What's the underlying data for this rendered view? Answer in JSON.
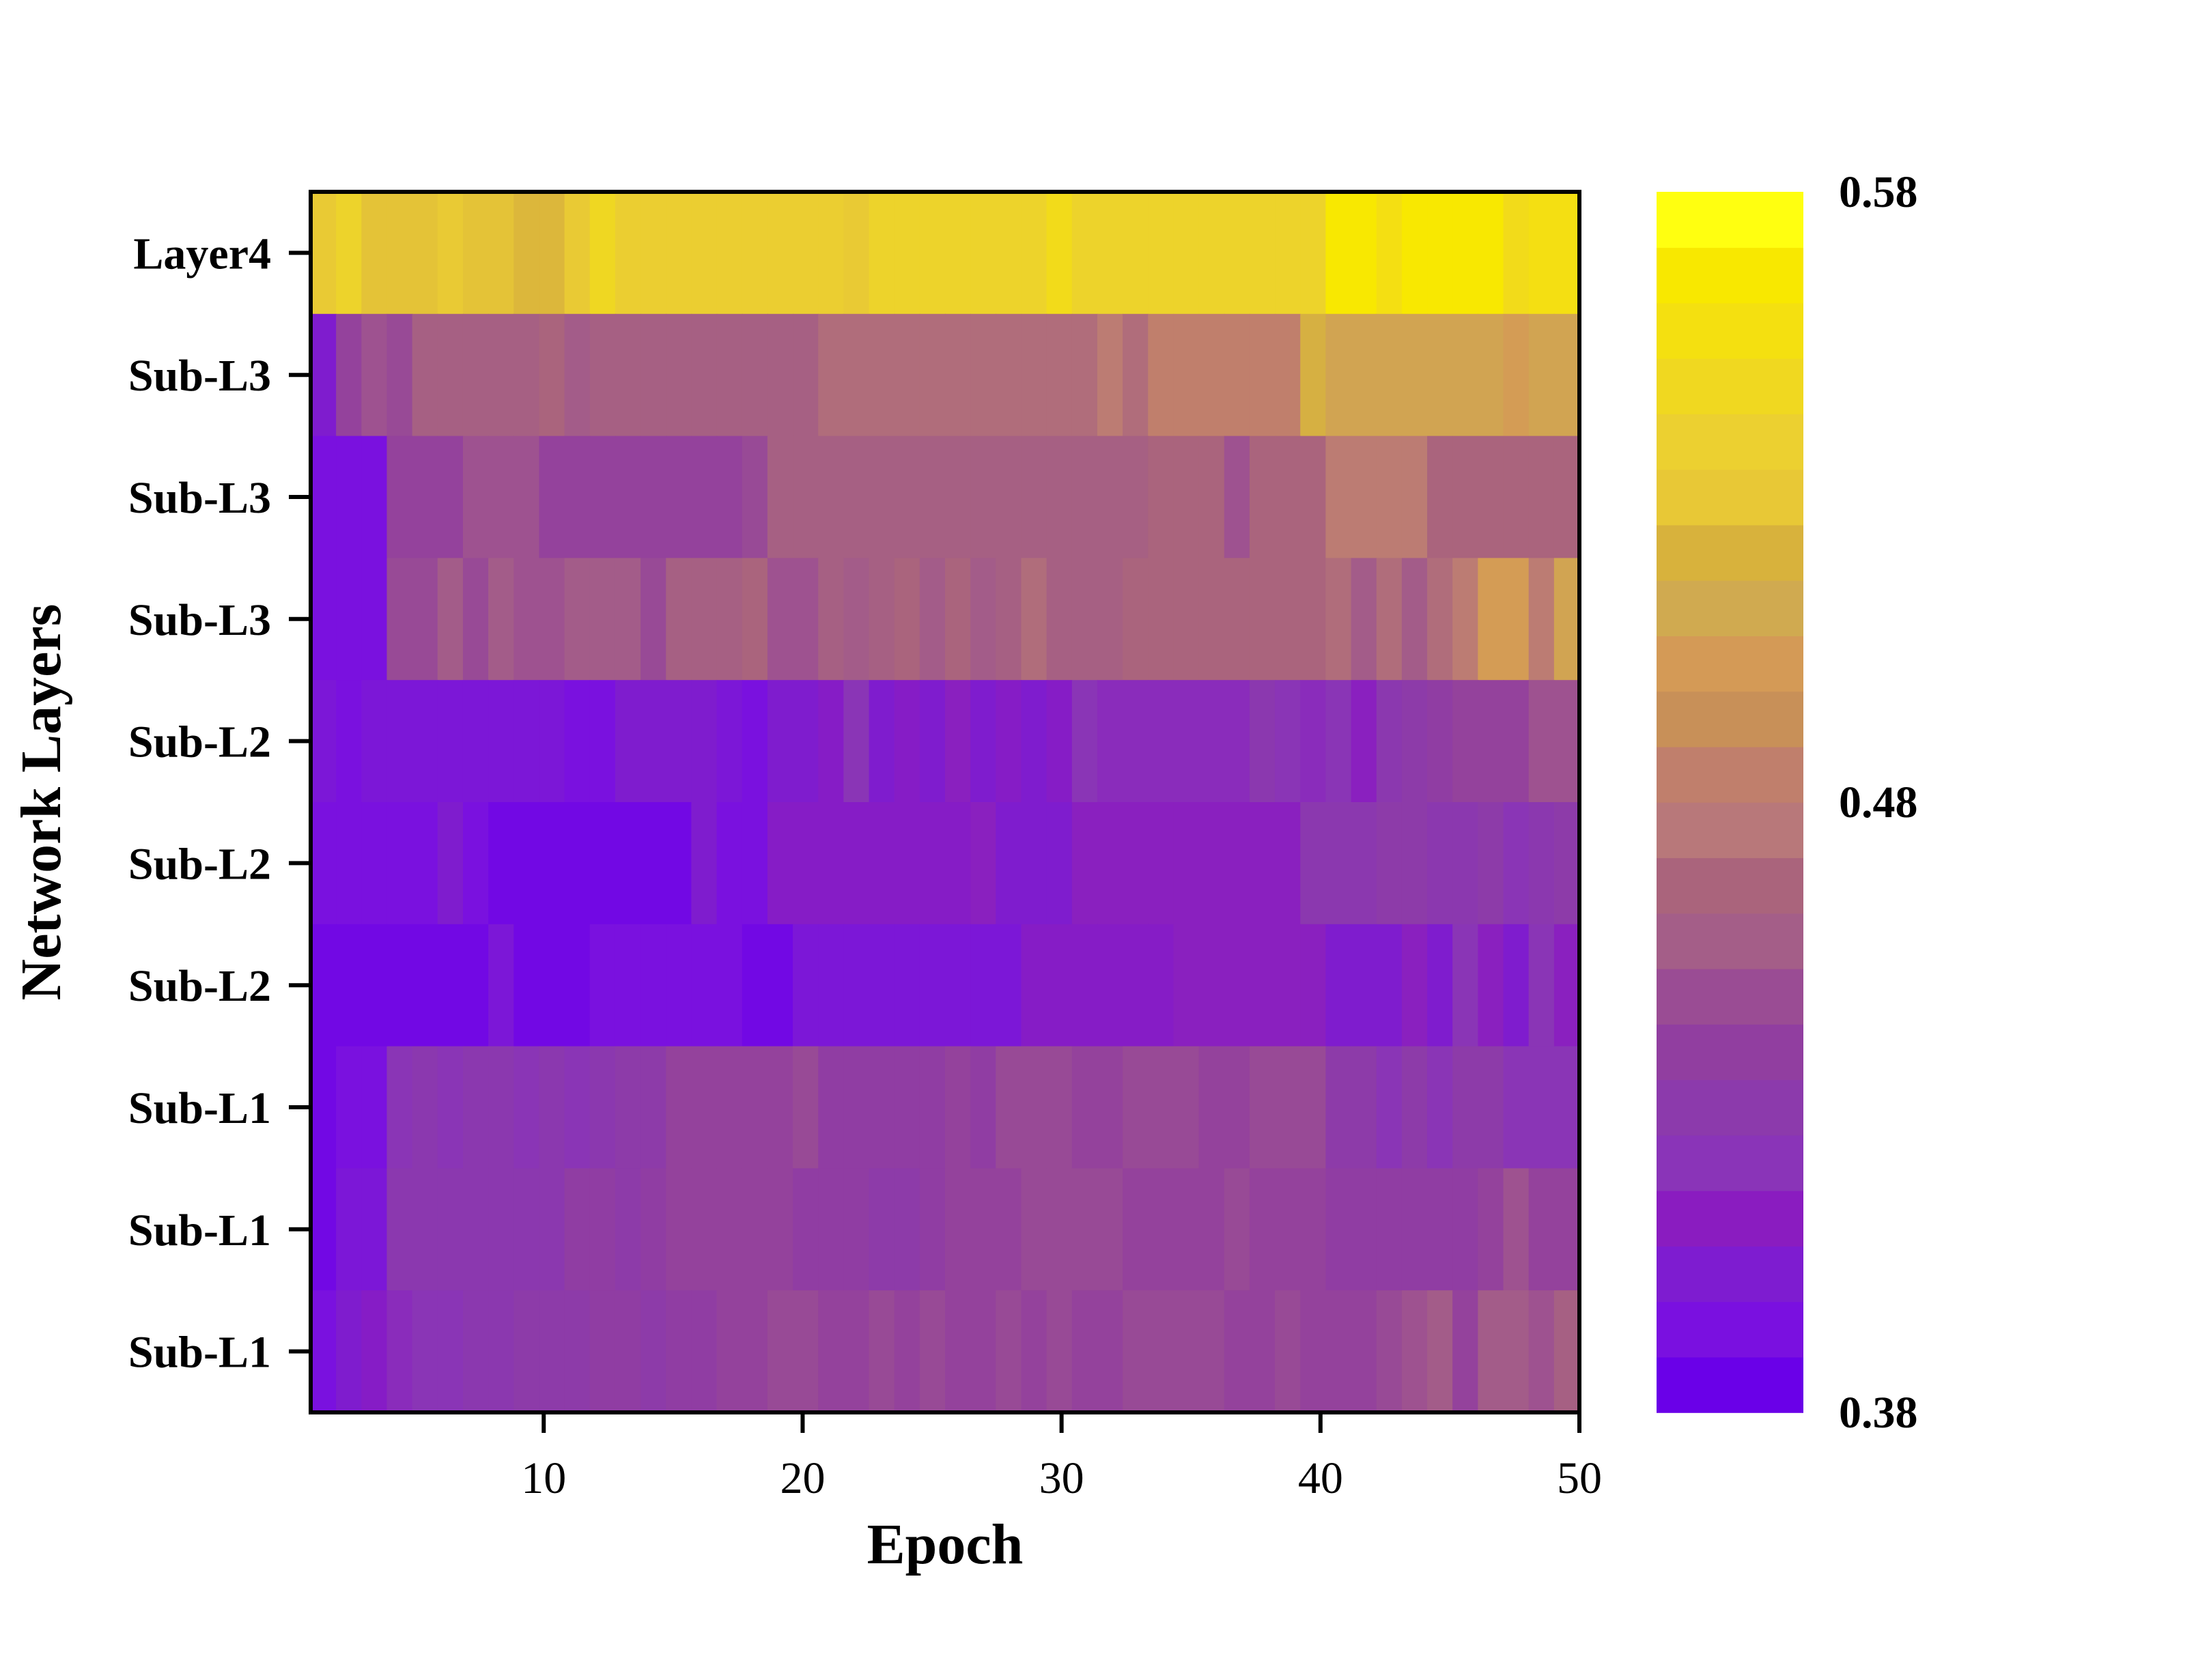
{
  "chart_data": {
    "type": "heatmap",
    "title": "",
    "xlabel": "Epoch",
    "ylabel": "Network Layers",
    "x": [
      1,
      2,
      3,
      4,
      5,
      6,
      7,
      8,
      9,
      10,
      11,
      12,
      13,
      14,
      15,
      16,
      17,
      18,
      19,
      20,
      21,
      22,
      23,
      24,
      25,
      26,
      27,
      28,
      29,
      30,
      31,
      32,
      33,
      34,
      35,
      36,
      37,
      38,
      39,
      40,
      41,
      42,
      43,
      44,
      45,
      46,
      47,
      48,
      49,
      50
    ],
    "xlim": [
      1,
      50
    ],
    "xticks": [
      "10",
      "20",
      "30",
      "40",
      "50"
    ],
    "xtick_values": [
      10,
      20,
      30,
      40,
      50
    ],
    "rows": [
      "Layer4",
      "Sub-L3",
      "Sub-L3",
      "Sub-L3",
      "Sub-L2",
      "Sub-L2",
      "Sub-L2",
      "Sub-L1",
      "Sub-L1",
      "Sub-L1"
    ],
    "values": [
      [
        0.535,
        0.545,
        0.53,
        0.53,
        0.53,
        0.535,
        0.53,
        0.53,
        0.525,
        0.525,
        0.535,
        0.55,
        0.54,
        0.54,
        0.54,
        0.54,
        0.54,
        0.54,
        0.54,
        0.54,
        0.54,
        0.535,
        0.545,
        0.545,
        0.545,
        0.545,
        0.545,
        0.545,
        0.545,
        0.555,
        0.545,
        0.545,
        0.545,
        0.545,
        0.545,
        0.545,
        0.545,
        0.545,
        0.545,
        0.545,
        0.57,
        0.57,
        0.56,
        0.57,
        0.57,
        0.57,
        0.57,
        0.555,
        0.56,
        0.56
      ],
      [
        0.4,
        0.44,
        0.45,
        0.445,
        0.46,
        0.46,
        0.46,
        0.46,
        0.46,
        0.465,
        0.455,
        0.46,
        0.46,
        0.46,
        0.46,
        0.46,
        0.46,
        0.46,
        0.46,
        0.46,
        0.47,
        0.47,
        0.47,
        0.47,
        0.47,
        0.47,
        0.47,
        0.47,
        0.47,
        0.47,
        0.47,
        0.48,
        0.47,
        0.485,
        0.485,
        0.485,
        0.485,
        0.485,
        0.485,
        0.52,
        0.51,
        0.51,
        0.51,
        0.51,
        0.51,
        0.51,
        0.51,
        0.505,
        0.51,
        0.51
      ],
      [
        0.39,
        0.39,
        0.39,
        0.44,
        0.44,
        0.44,
        0.45,
        0.45,
        0.45,
        0.44,
        0.44,
        0.44,
        0.44,
        0.44,
        0.44,
        0.44,
        0.44,
        0.445,
        0.46,
        0.46,
        0.46,
        0.46,
        0.46,
        0.46,
        0.46,
        0.46,
        0.46,
        0.46,
        0.46,
        0.46,
        0.46,
        0.46,
        0.46,
        0.465,
        0.465,
        0.465,
        0.45,
        0.465,
        0.465,
        0.465,
        0.48,
        0.48,
        0.48,
        0.48,
        0.465,
        0.465,
        0.465,
        0.465,
        0.465,
        0.465
      ],
      [
        0.39,
        0.39,
        0.39,
        0.445,
        0.445,
        0.455,
        0.445,
        0.455,
        0.45,
        0.45,
        0.455,
        0.455,
        0.455,
        0.445,
        0.46,
        0.46,
        0.46,
        0.465,
        0.45,
        0.45,
        0.46,
        0.455,
        0.46,
        0.465,
        0.455,
        0.465,
        0.455,
        0.46,
        0.47,
        0.46,
        0.46,
        0.46,
        0.465,
        0.465,
        0.465,
        0.465,
        0.465,
        0.465,
        0.465,
        0.465,
        0.47,
        0.455,
        0.47,
        0.455,
        0.47,
        0.48,
        0.505,
        0.505,
        0.48,
        0.51
      ],
      [
        0.395,
        0.39,
        0.395,
        0.395,
        0.395,
        0.395,
        0.395,
        0.395,
        0.395,
        0.395,
        0.39,
        0.39,
        0.4,
        0.4,
        0.4,
        0.4,
        0.395,
        0.39,
        0.4,
        0.4,
        0.405,
        0.42,
        0.4,
        0.405,
        0.4,
        0.41,
        0.4,
        0.405,
        0.4,
        0.405,
        0.42,
        0.415,
        0.415,
        0.415,
        0.415,
        0.415,
        0.415,
        0.425,
        0.42,
        0.415,
        0.42,
        0.41,
        0.425,
        0.43,
        0.435,
        0.44,
        0.44,
        0.44,
        0.45,
        0.45
      ],
      [
        0.39,
        0.39,
        0.39,
        0.39,
        0.39,
        0.4,
        0.39,
        0.385,
        0.385,
        0.385,
        0.385,
        0.385,
        0.385,
        0.385,
        0.385,
        0.4,
        0.39,
        0.39,
        0.405,
        0.405,
        0.405,
        0.405,
        0.405,
        0.405,
        0.405,
        0.405,
        0.41,
        0.4,
        0.4,
        0.4,
        0.41,
        0.41,
        0.41,
        0.41,
        0.41,
        0.41,
        0.41,
        0.41,
        0.41,
        0.425,
        0.425,
        0.425,
        0.43,
        0.43,
        0.425,
        0.425,
        0.43,
        0.42,
        0.425,
        0.43
      ],
      [
        0.385,
        0.385,
        0.385,
        0.385,
        0.385,
        0.385,
        0.385,
        0.395,
        0.385,
        0.385,
        0.385,
        0.39,
        0.39,
        0.39,
        0.39,
        0.39,
        0.39,
        0.385,
        0.385,
        0.395,
        0.395,
        0.395,
        0.395,
        0.395,
        0.395,
        0.395,
        0.395,
        0.395,
        0.405,
        0.405,
        0.405,
        0.405,
        0.405,
        0.405,
        0.41,
        0.41,
        0.41,
        0.41,
        0.41,
        0.41,
        0.4,
        0.4,
        0.4,
        0.41,
        0.4,
        0.42,
        0.41,
        0.4,
        0.42,
        0.41
      ],
      [
        0.385,
        0.39,
        0.39,
        0.42,
        0.425,
        0.42,
        0.425,
        0.425,
        0.42,
        0.425,
        0.42,
        0.425,
        0.43,
        0.43,
        0.44,
        0.44,
        0.44,
        0.44,
        0.44,
        0.445,
        0.435,
        0.435,
        0.435,
        0.435,
        0.435,
        0.44,
        0.435,
        0.445,
        0.445,
        0.445,
        0.44,
        0.44,
        0.445,
        0.445,
        0.445,
        0.44,
        0.44,
        0.445,
        0.445,
        0.445,
        0.43,
        0.43,
        0.42,
        0.43,
        0.42,
        0.43,
        0.43,
        0.42,
        0.42,
        0.42
      ],
      [
        0.385,
        0.395,
        0.395,
        0.425,
        0.425,
        0.425,
        0.425,
        0.425,
        0.425,
        0.425,
        0.435,
        0.435,
        0.43,
        0.435,
        0.44,
        0.44,
        0.44,
        0.44,
        0.44,
        0.435,
        0.435,
        0.435,
        0.43,
        0.43,
        0.435,
        0.44,
        0.44,
        0.44,
        0.445,
        0.445,
        0.445,
        0.445,
        0.44,
        0.44,
        0.44,
        0.44,
        0.445,
        0.44,
        0.44,
        0.44,
        0.435,
        0.435,
        0.435,
        0.435,
        0.435,
        0.435,
        0.44,
        0.45,
        0.44,
        0.44
      ],
      [
        0.39,
        0.4,
        0.405,
        0.415,
        0.42,
        0.42,
        0.425,
        0.425,
        0.43,
        0.43,
        0.43,
        0.435,
        0.435,
        0.43,
        0.435,
        0.435,
        0.44,
        0.44,
        0.445,
        0.445,
        0.44,
        0.44,
        0.445,
        0.44,
        0.445,
        0.44,
        0.44,
        0.445,
        0.44,
        0.445,
        0.44,
        0.44,
        0.445,
        0.445,
        0.445,
        0.445,
        0.44,
        0.44,
        0.445,
        0.44,
        0.44,
        0.44,
        0.445,
        0.45,
        0.455,
        0.44,
        0.455,
        0.455,
        0.45,
        0.46
      ]
    ],
    "colorbar": {
      "min": 0.38,
      "max": 0.58,
      "ticks": [
        "0.58",
        "0.48",
        "0.38"
      ],
      "tick_values": [
        0.58,
        0.48,
        0.38
      ],
      "colors": [
        "#6a00e8",
        "#7a10e0",
        "#7e1cd0",
        "#8a1cc0",
        "#8a34b8",
        "#8c3aac",
        "#913ea0",
        "#9a4c94",
        "#a45e88",
        "#aa647c",
        "#b8787a",
        "#c07f6c",
        "#c89058",
        "#d49a56",
        "#d0aa50",
        "#d8b23c",
        "#e8c836",
        "#ecd030",
        "#f0d820",
        "#f4e010",
        "#f8e800",
        "#ffff10"
      ]
    },
    "grid": false,
    "legend": "colorbar-right"
  }
}
